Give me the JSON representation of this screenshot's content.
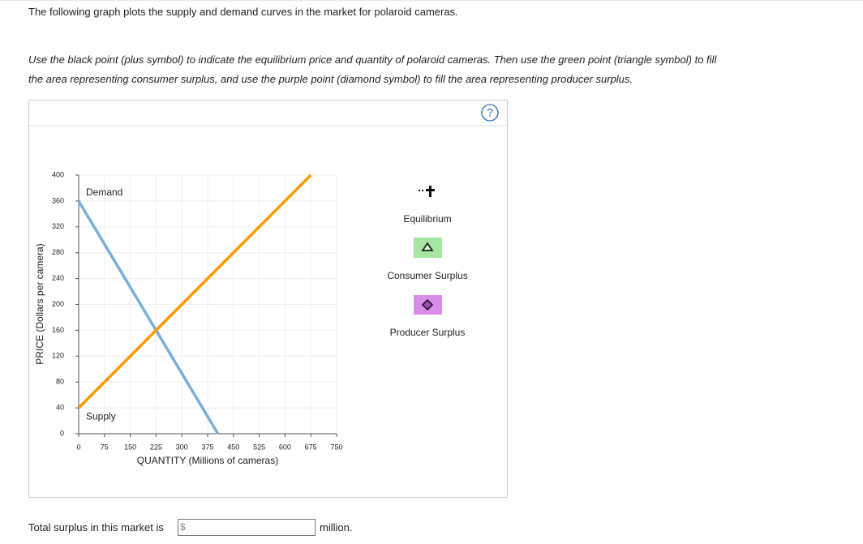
{
  "intro": "The following graph plots the supply and demand curves in the market for polaroid cameras.",
  "instructions": [
    "Use the black point (plus symbol) to indicate the equilibrium price and quantity of polaroid cameras. Then use the green point (triangle symbol) to fill",
    "the area representing consumer surplus, and use the purple point (diamond symbol) to fill the area representing producer surplus."
  ],
  "help_icon": "?",
  "chart_data": {
    "type": "line",
    "x_label": "QUANTITY (Millions of cameras)",
    "y_label": "PRICE (Dollars per camera)",
    "xlim": [
      0,
      750
    ],
    "ylim": [
      0,
      400
    ],
    "xticks": [
      0,
      75,
      150,
      225,
      300,
      375,
      450,
      525,
      600,
      675,
      750
    ],
    "yticks": [
      0,
      40,
      80,
      120,
      160,
      200,
      240,
      280,
      320,
      360,
      400
    ],
    "grid": true,
    "series": [
      {
        "name": "Demand",
        "color": "#7aaedc",
        "x": [
          0,
          405
        ],
        "values": [
          360,
          0
        ]
      },
      {
        "name": "Supply",
        "color": "#ff9900",
        "x": [
          0,
          675
        ],
        "values": [
          40,
          400
        ]
      }
    ]
  },
  "tools": [
    "Equilibrium",
    "Consumer Surplus",
    "Producer Surplus"
  ],
  "answer": {
    "prefix": "Total surplus in this market is",
    "currency": "$",
    "suffix": "million."
  }
}
